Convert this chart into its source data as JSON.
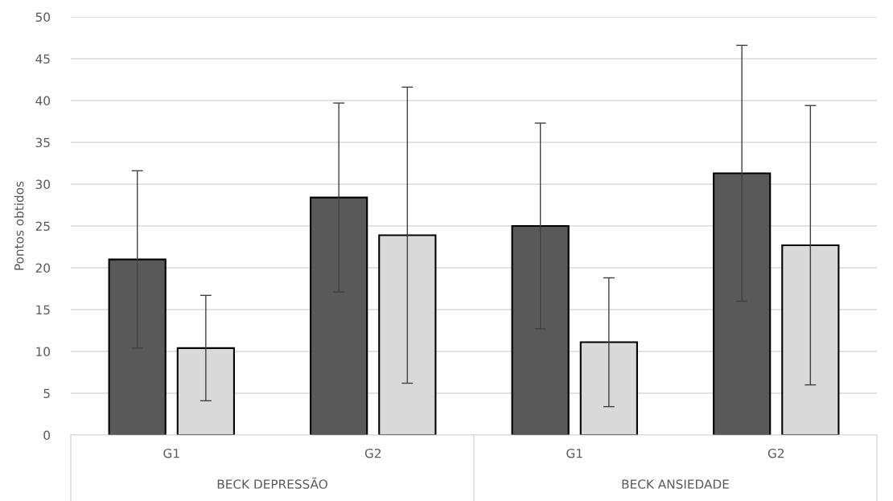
{
  "chart_data": {
    "type": "bar",
    "categories": [
      "G1",
      "G2",
      "G1",
      "G2"
    ],
    "series": [
      {
        "color": "#595959",
        "values": [
          21.0,
          28.4,
          25.0,
          31.3
        ],
        "errors": [
          10.6,
          11.3,
          12.3,
          15.3
        ]
      },
      {
        "color": "#d9d9d9",
        "values": [
          10.4,
          23.9,
          11.1,
          22.7
        ],
        "errors": [
          6.3,
          17.7,
          7.7,
          16.7
        ]
      }
    ],
    "ylabel": "Pontos obtidos",
    "ylim": [
      0,
      50
    ],
    "yticks": [
      0,
      5,
      10,
      15,
      20,
      25,
      30,
      35,
      40,
      45,
      50
    ],
    "grid": "y",
    "annotations": [
      "BECK DEPRESSÃO",
      "BECK ANSIEDADE"
    ]
  }
}
